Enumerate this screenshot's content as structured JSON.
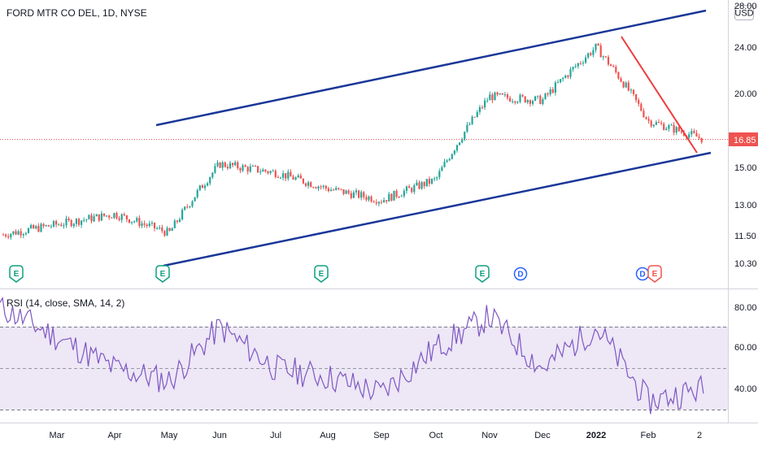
{
  "header": {
    "symbol_title": "FORD MTR CO DEL, 1D, NYSE",
    "currency_badge": "USD"
  },
  "price_axis": {
    "top_partial": "28.00",
    "labels": [
      "24.00",
      "20.00",
      "15.00",
      "13.00",
      "11.50",
      "10.30"
    ],
    "last_price": "16.85"
  },
  "rsi_panel": {
    "title": "RSI (14, close, SMA, 14, 2)",
    "labels": [
      "80.00",
      "60.00",
      "40.00"
    ],
    "upper_band": 70,
    "middle_line": 50,
    "lower_band": 30
  },
  "time_axis": {
    "labels": [
      "Mar",
      "Apr",
      "May",
      "Jun",
      "Jul",
      "Aug",
      "Sep",
      "Oct",
      "Nov",
      "Dec",
      "2022",
      "Feb",
      "2"
    ]
  },
  "events": {
    "earnings_letter": "E",
    "dividend_letter": "D"
  },
  "colors": {
    "up_candle": "#26a69a",
    "down_candle": "#ef5350",
    "channel_lines": "#1a3799",
    "trend_line": "#ef3b3b",
    "rsi_line": "#7e57c2",
    "rsi_band_fill": "#ede7f6",
    "last_price_badge": "#ef5350",
    "earnings_marker": "#0e9f7f",
    "dividend_marker": "#2962ff"
  },
  "chart_data": [
    {
      "type": "candlestick",
      "title": "FORD MTR CO DEL, 1D, NYSE",
      "scale": "log",
      "currency": "USD",
      "ylim": [
        10.0,
        28.0
      ],
      "last_price": 16.85,
      "monthly_closes_approx": [
        {
          "x": "Mar",
          "y": 12.0
        },
        {
          "x": "Apr",
          "y": 12.5
        },
        {
          "x": "May",
          "y": 11.6
        },
        {
          "x": "Jun",
          "y": 15.2
        },
        {
          "x": "Jul",
          "y": 14.7
        },
        {
          "x": "Aug",
          "y": 13.8
        },
        {
          "x": "Sep",
          "y": 13.2
        },
        {
          "x": "Oct",
          "y": 14.3
        },
        {
          "x": "Nov",
          "y": 19.8
        },
        {
          "x": "Dec",
          "y": 19.5
        },
        {
          "x": "2022",
          "y": 24.0
        },
        {
          "x": "Feb",
          "y": 18.0
        },
        {
          "x": "2",
          "y": 16.85
        }
      ]
    },
    {
      "type": "line",
      "title": "RSI (14, close, SMA, 14, 2)",
      "ylim": [
        25,
        85
      ],
      "bands": [
        30,
        50,
        70
      ],
      "values_approx": [
        {
          "x": "Mar",
          "y": 65
        },
        {
          "x": "Apr",
          "y": 50
        },
        {
          "x": "May",
          "y": 44
        },
        {
          "x": "Jun",
          "y": 70
        },
        {
          "x": "Jul",
          "y": 50
        },
        {
          "x": "Aug",
          "y": 46
        },
        {
          "x": "Sep",
          "y": 38
        },
        {
          "x": "Oct",
          "y": 60
        },
        {
          "x": "Nov",
          "y": 75
        },
        {
          "x": "Dec",
          "y": 50
        },
        {
          "x": "2022",
          "y": 70
        },
        {
          "x": "Feb",
          "y": 34
        },
        {
          "x": "2",
          "y": 40
        }
      ]
    }
  ]
}
